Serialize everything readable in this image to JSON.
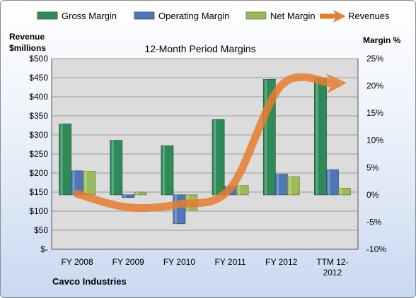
{
  "colors": {
    "gross": "#2e8b57",
    "operating": "#4f77b8",
    "net": "#9bbb59",
    "revenue": "#e87d2e"
  },
  "chart_data": {
    "type": "bar",
    "title": "12-Month Period Margins",
    "company": "Cavco Industries",
    "ylabel_left": [
      "Revenue",
      "$millions"
    ],
    "ylabel_right": "Margin %",
    "categories": [
      [
        "FY 2008"
      ],
      [
        "FY 2009"
      ],
      [
        "FY 2010"
      ],
      [
        "FY 2011"
      ],
      [
        "FY 2012"
      ],
      [
        "TTM 12-",
        "2012"
      ]
    ],
    "left_axis": {
      "min": 0,
      "max": 500,
      "step": 50,
      "tick_labels": [
        "$-",
        "$50",
        "$100",
        "$150",
        "$200",
        "$250",
        "$300",
        "$350",
        "$400",
        "$450",
        "$500"
      ]
    },
    "right_axis": {
      "min": -10,
      "max": 25,
      "step": 5,
      "tick_labels": [
        "-10%",
        "-5%",
        "0%",
        "5%",
        "10%",
        "15%",
        "20%",
        "25%"
      ]
    },
    "grid": true,
    "legend": {
      "position": "top",
      "entries": [
        "Gross Margin",
        "Operating Margin",
        "Net Margin",
        "Revenues"
      ]
    },
    "series": [
      {
        "name": "Gross Margin",
        "kind": "bar",
        "axis": "right",
        "values": [
          13,
          10,
          9,
          13.8,
          21.2,
          21.4
        ]
      },
      {
        "name": "Operating Margin",
        "kind": "bar",
        "axis": "right",
        "values": [
          4.4,
          -0.5,
          -5.3,
          1.5,
          3.8,
          4.6
        ]
      },
      {
        "name": "Net Margin",
        "kind": "bar",
        "axis": "right",
        "values": [
          4.3,
          0.5,
          -2.8,
          1.7,
          3.3,
          1.2
        ]
      },
      {
        "name": "Revenues",
        "kind": "line",
        "axis": "left",
        "values": [
          145,
          110,
          118,
          160,
          430,
          435
        ]
      }
    ]
  }
}
